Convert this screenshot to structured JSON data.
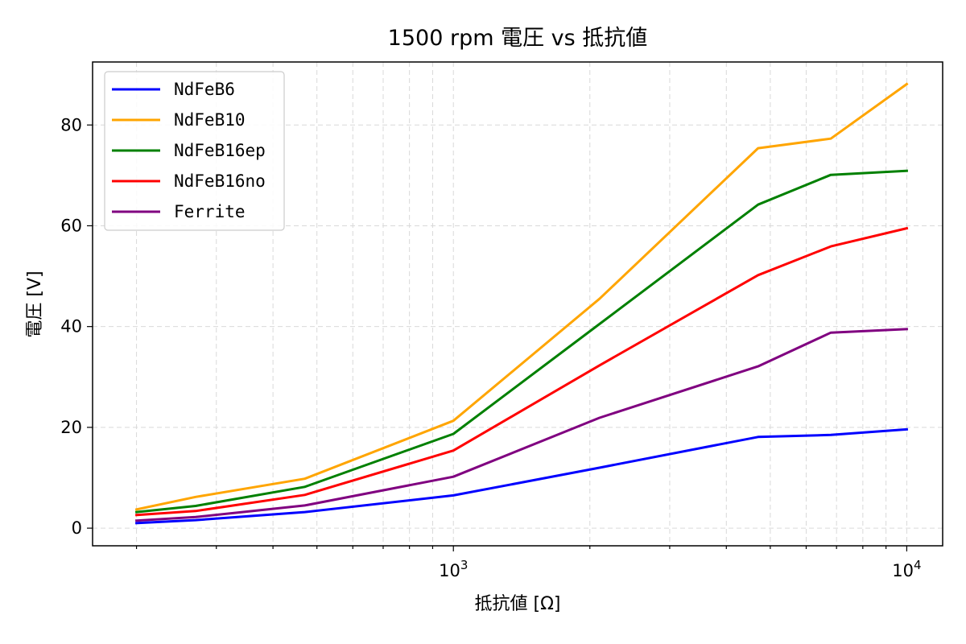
{
  "chart_data": {
    "type": "line",
    "title": "1500 rpm 電圧 vs 抵抗値",
    "xlabel": "抵抗値 [Ω]",
    "ylabel": "電圧 [V]",
    "xscale": "log",
    "xlim": [
      160,
      12000
    ],
    "ylim": [
      -3.5,
      92.5
    ],
    "x": [
      200,
      270,
      470,
      1000,
      2100,
      4700,
      6800,
      10000
    ],
    "x_ticks": [
      {
        "value": 1000,
        "base": "10",
        "exp": "3"
      },
      {
        "value": 10000,
        "base": "10",
        "exp": "4"
      }
    ],
    "y_ticks": [
      {
        "value": 0,
        "label": "0"
      },
      {
        "value": 20,
        "label": "20"
      },
      {
        "value": 40,
        "label": "40"
      },
      {
        "value": 60,
        "label": "60"
      },
      {
        "value": 80,
        "label": "80"
      }
    ],
    "grid": true,
    "legend_position": "upper-left",
    "series": [
      {
        "name": "NdFeB6",
        "color": "#0000ff",
        "values": [
          1.0,
          1.6,
          3.2,
          6.5,
          12.0,
          18.1,
          18.5,
          19.6
        ]
      },
      {
        "name": "NdFeB10",
        "color": "#ffa500",
        "values": [
          3.7,
          6.2,
          9.8,
          21.3,
          45.5,
          75.4,
          77.3,
          88.1
        ]
      },
      {
        "name": "NdFeB16ep",
        "color": "#008000",
        "values": [
          3.2,
          4.4,
          8.2,
          18.7,
          40.5,
          64.2,
          70.1,
          70.9
        ]
      },
      {
        "name": "NdFeB16no",
        "color": "#ff0000",
        "values": [
          2.6,
          3.4,
          6.6,
          15.4,
          32.3,
          50.2,
          55.9,
          59.5
        ]
      },
      {
        "name": "Ferrite",
        "color": "#800080",
        "values": [
          1.5,
          2.2,
          4.5,
          10.2,
          21.9,
          32.1,
          38.8,
          39.5
        ]
      }
    ]
  }
}
